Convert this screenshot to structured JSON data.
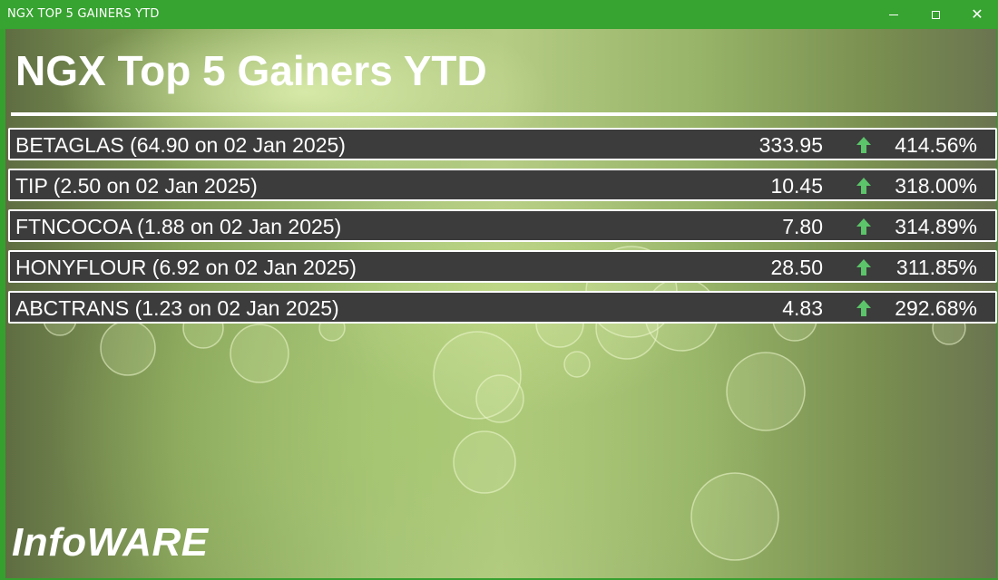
{
  "window": {
    "title": "NGX TOP 5 GAINERS YTD",
    "controls": {
      "minimize_icon": "minimize-icon",
      "maximize_icon": "maximize-icon",
      "close_icon": "close-icon",
      "close_glyph": "✕"
    }
  },
  "header": {
    "title": "NGX Top 5 Gainers YTD"
  },
  "gainers": [
    {
      "name": "BETAGLAS (64.90 on 02 Jan 2025)",
      "price": "333.95",
      "change": "414.56%",
      "direction": "up"
    },
    {
      "name": "TIP (2.50 on 02 Jan 2025)",
      "price": "10.45",
      "change": "318.00%",
      "direction": "up"
    },
    {
      "name": "FTNCOCOA (1.88 on 02 Jan 2025)",
      "price": "7.80",
      "change": "314.89%",
      "direction": "up"
    },
    {
      "name": "HONYFLOUR (6.92 on 02 Jan 2025)",
      "price": "28.50",
      "change": "311.85%",
      "direction": "up"
    },
    {
      "name": "ABCTRANS (1.23 on 02 Jan 2025)",
      "price": "4.83",
      "change": "292.68%",
      "direction": "up"
    }
  ],
  "footer": {
    "brand": "InfoWARE"
  },
  "colors": {
    "titlebar": "#37a331",
    "row_background": "#3c3c3c",
    "row_border": "#ffffff",
    "up_arrow": "#5cc46a",
    "text": "#ffffff"
  }
}
